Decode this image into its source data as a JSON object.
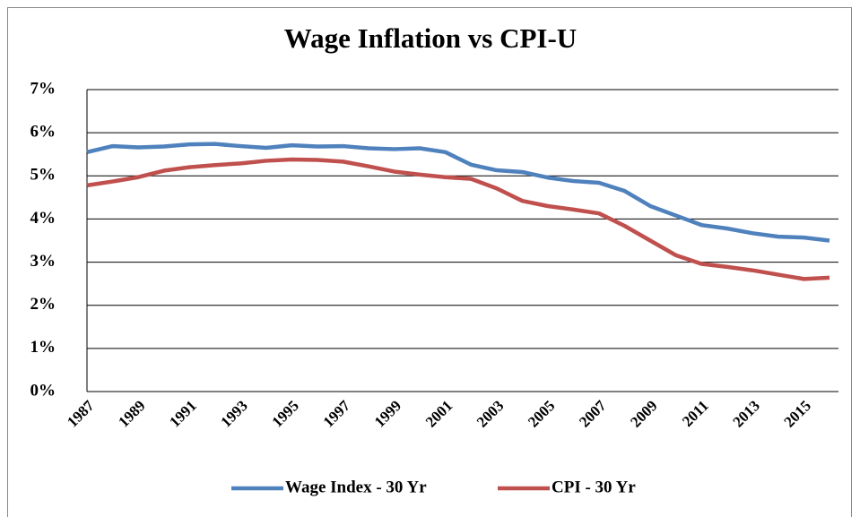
{
  "chart_data": {
    "type": "line",
    "title": "Wage Inflation vs CPI-U",
    "categories": [
      "1987",
      null,
      "1989",
      null,
      "1991",
      null,
      "1993",
      null,
      "1995",
      null,
      "1997",
      null,
      "1999",
      null,
      "2001",
      null,
      "2003",
      null,
      "2005",
      null,
      "2007",
      null,
      "2009",
      null,
      "2011",
      null,
      "2013",
      null,
      "2015",
      null
    ],
    "series": [
      {
        "name": "Wage Index - 30 Yr",
        "color": "#4f81bd",
        "values": [
          5.55,
          5.69,
          5.66,
          5.68,
          5.73,
          5.74,
          5.69,
          5.65,
          5.71,
          5.68,
          5.69,
          5.64,
          5.62,
          5.64,
          5.55,
          5.26,
          5.13,
          5.09,
          4.96,
          4.88,
          4.84,
          4.65,
          4.3,
          4.08,
          3.86,
          3.78,
          3.67,
          3.59,
          3.57,
          3.5
        ]
      },
      {
        "name": "CPI - 30 Yr",
        "color": "#c0504d",
        "values": [
          4.78,
          4.87,
          4.97,
          5.12,
          5.2,
          5.25,
          5.29,
          5.35,
          5.38,
          5.37,
          5.33,
          5.22,
          5.1,
          5.03,
          4.97,
          4.93,
          4.71,
          4.42,
          4.3,
          4.22,
          4.13,
          3.84,
          3.5,
          3.16,
          2.96,
          2.89,
          2.81,
          2.71,
          2.61,
          2.64
        ]
      }
    ],
    "ylim": [
      0,
      7
    ],
    "yticks": [
      {
        "value": 0,
        "label": "0%"
      },
      {
        "value": 1,
        "label": "1%"
      },
      {
        "value": 2,
        "label": "2%"
      },
      {
        "value": 3,
        "label": "3%"
      },
      {
        "value": 4,
        "label": "4%"
      },
      {
        "value": 5,
        "label": "5%"
      },
      {
        "value": 6,
        "label": "6%"
      },
      {
        "value": 7,
        "label": "7%"
      }
    ],
    "grid": true,
    "legend": "bottom"
  }
}
